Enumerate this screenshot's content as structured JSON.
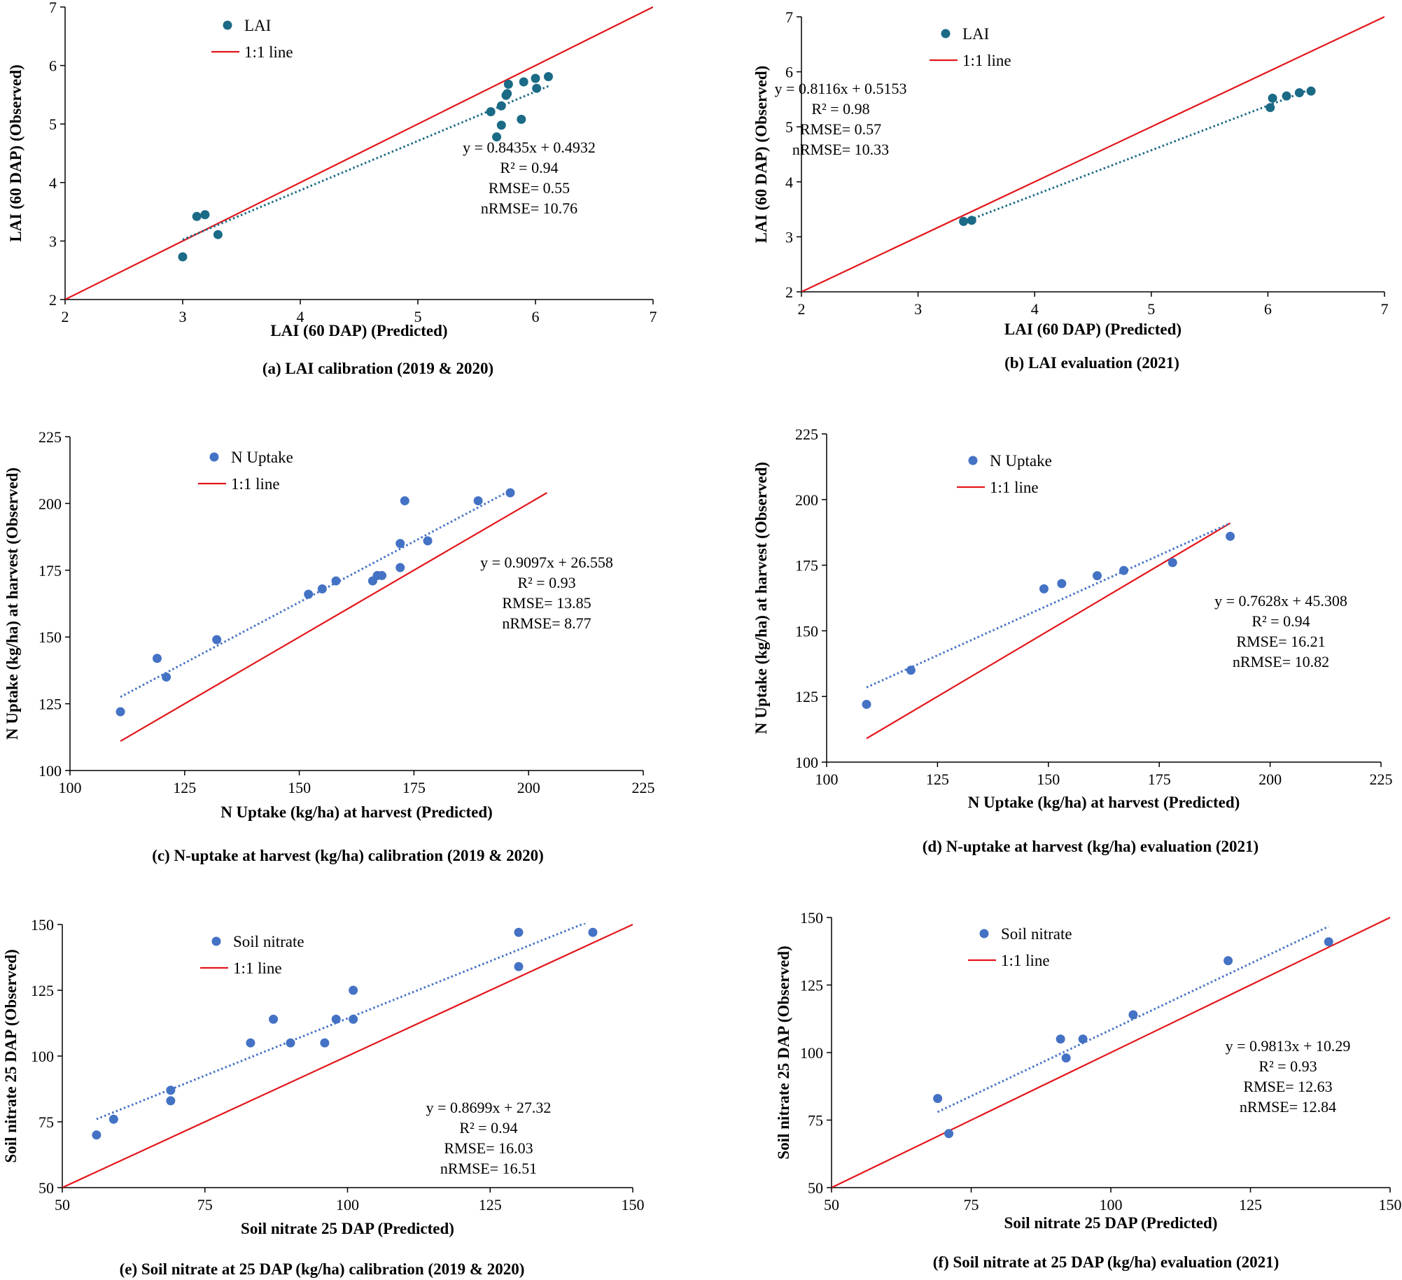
{
  "colors": {
    "lai_point": "#1b6a86",
    "blue_point": "#4472c4",
    "one_to_one": "#e3161b",
    "axis": "#000000"
  },
  "chart_data": [
    {
      "id": "a",
      "type": "scatter",
      "caption": "(a) LAI calibration (2019 & 2020)",
      "xlabel": "LAI (60 DAP) (Predicted)",
      "ylabel": "LAI  (60 DAP) (Observed)",
      "xlim": [
        2,
        7
      ],
      "ylim": [
        2,
        7
      ],
      "xticks": [
        2,
        3,
        4,
        5,
        6,
        7
      ],
      "yticks": [
        2,
        3,
        4,
        5,
        6,
        7
      ],
      "series_name": "LAI",
      "point_color_key": "lai_point",
      "one_to_one_label": "1:1 line",
      "one_to_one": [
        [
          2,
          2
        ],
        [
          7,
          7
        ]
      ],
      "trend": {
        "slope": 0.8435,
        "intercept": 0.4932,
        "x_range": [
          3.0,
          6.12
        ]
      },
      "annotation": [
        "y = 0.8435x + 0.4932",
        "R² = 0.94",
        "RMSE= 0.55",
        "nRMSE= 10.76"
      ],
      "points": [
        [
          3.0,
          2.73
        ],
        [
          3.12,
          3.42
        ],
        [
          3.19,
          3.45
        ],
        [
          3.3,
          3.11
        ],
        [
          5.62,
          5.21
        ],
        [
          5.67,
          4.78
        ],
        [
          5.71,
          4.98
        ],
        [
          5.71,
          5.31
        ],
        [
          5.75,
          5.49
        ],
        [
          5.76,
          5.52
        ],
        [
          5.77,
          5.68
        ],
        [
          5.88,
          5.08
        ],
        [
          5.9,
          5.72
        ],
        [
          6.0,
          5.78
        ],
        [
          6.01,
          5.61
        ],
        [
          6.11,
          5.81
        ]
      ]
    },
    {
      "id": "b",
      "type": "scatter",
      "caption": "(b) LAI evaluation (2021)",
      "xlabel": "LAI (60 DAP) (Predicted)",
      "ylabel": "LAI  (60 DAP) (Observed)",
      "xlim": [
        2,
        7
      ],
      "ylim": [
        2,
        7
      ],
      "xticks": [
        2,
        3,
        4,
        5,
        6,
        7
      ],
      "yticks": [
        2,
        3,
        4,
        5,
        6,
        7
      ],
      "series_name": "LAI",
      "point_color_key": "lai_point",
      "one_to_one_label": "1:1 line",
      "one_to_one": [
        [
          2,
          2
        ],
        [
          7,
          7
        ]
      ],
      "trend": {
        "slope": 0.8116,
        "intercept": 0.5153,
        "x_range": [
          3.38,
          6.37
        ]
      },
      "annotation": [
        "y = 0.8116x + 0.5153",
        "R² = 0.98",
        "RMSE= 0.57",
        "nRMSE= 10.33"
      ],
      "points": [
        [
          3.39,
          3.28
        ],
        [
          3.46,
          3.3
        ],
        [
          6.02,
          5.35
        ],
        [
          6.04,
          5.52
        ],
        [
          6.16,
          5.56
        ],
        [
          6.27,
          5.62
        ],
        [
          6.37,
          5.65
        ]
      ]
    },
    {
      "id": "c",
      "type": "scatter",
      "caption": "(c) N-uptake at harvest (kg/ha) calibration (2019 & 2020)",
      "xlabel": "N Uptake (kg/ha) at harvest (Predicted)",
      "ylabel": "N Uptake  (kg/ha) at harvest (Observed)",
      "xlim": [
        100,
        225
      ],
      "ylim": [
        100,
        225
      ],
      "xticks": [
        100,
        125,
        150,
        175,
        200,
        225
      ],
      "yticks": [
        100,
        125,
        150,
        175,
        200,
        225
      ],
      "series_name": "N Uptake",
      "point_color_key": "blue_point",
      "one_to_one_label": "1:1 line",
      "one_to_one": [
        [
          111,
          111
        ],
        [
          204,
          204
        ]
      ],
      "trend": {
        "slope": 0.9097,
        "intercept": 26.558,
        "x_range": [
          111,
          196
        ]
      },
      "annotation": [
        "y = 0.9097x + 26.558",
        "R² = 0.93",
        "RMSE= 13.85",
        "nRMSE= 8.77"
      ],
      "points": [
        [
          111,
          122
        ],
        [
          119,
          142
        ],
        [
          121,
          135
        ],
        [
          132,
          149
        ],
        [
          152,
          166
        ],
        [
          155,
          168
        ],
        [
          158,
          171
        ],
        [
          166,
          171
        ],
        [
          167,
          173
        ],
        [
          168,
          173
        ],
        [
          172,
          176
        ],
        [
          172,
          185
        ],
        [
          173,
          201
        ],
        [
          178,
          186
        ],
        [
          189,
          201
        ],
        [
          196,
          204
        ]
      ]
    },
    {
      "id": "d",
      "type": "scatter",
      "caption": "(d) N-uptake at harvest (kg/ha) evaluation (2021)",
      "xlabel": "N Uptake (kg/ha) at harvest (Predicted)",
      "ylabel": "N Uptake  (kg/ha) at harvest (Observed)",
      "xlim": [
        100,
        225
      ],
      "ylim": [
        100,
        225
      ],
      "xticks": [
        100,
        125,
        150,
        175,
        200,
        225
      ],
      "yticks": [
        100,
        125,
        150,
        175,
        200,
        225
      ],
      "series_name": "N Uptake",
      "point_color_key": "blue_point",
      "one_to_one_label": "1:1 line",
      "one_to_one": [
        [
          109,
          109
        ],
        [
          191,
          191
        ]
      ],
      "trend": {
        "slope": 0.7628,
        "intercept": 45.308,
        "x_range": [
          109,
          191
        ]
      },
      "annotation": [
        "y = 0.7628x + 45.308",
        "R² = 0.94",
        "RMSE= 16.21",
        "nRMSE= 10.82"
      ],
      "points": [
        [
          109,
          122
        ],
        [
          119,
          135
        ],
        [
          149,
          166
        ],
        [
          153,
          168
        ],
        [
          161,
          171
        ],
        [
          167,
          173
        ],
        [
          178,
          176
        ],
        [
          191,
          186
        ]
      ]
    },
    {
      "id": "e",
      "type": "scatter",
      "caption": "(e) Soil nitrate at 25 DAP (kg/ha) calibration (2019 & 2020)",
      "xlabel": "Soil nitrate 25 DAP (Predicted)",
      "ylabel": "Soil nitrate 25 DAP (Observed)",
      "xlim": [
        50,
        150
      ],
      "ylim": [
        50,
        150
      ],
      "xticks": [
        50,
        75,
        100,
        125,
        150
      ],
      "yticks": [
        50,
        75,
        100,
        125,
        150
      ],
      "series_name": "Soil nitrate",
      "point_color_key": "blue_point",
      "one_to_one_label": "1:1 line",
      "one_to_one": [
        [
          50,
          50
        ],
        [
          150,
          150
        ]
      ],
      "trend": {
        "slope": 0.8699,
        "intercept": 27.32,
        "x_range": [
          56,
          142
        ]
      },
      "annotation": [
        "y = 0.8699x + 27.32",
        "R² = 0.94",
        "RMSE= 16.03",
        "nRMSE= 16.51"
      ],
      "points": [
        [
          56,
          70
        ],
        [
          59,
          76
        ],
        [
          69,
          83
        ],
        [
          69,
          87
        ],
        [
          83,
          105
        ],
        [
          87,
          114
        ],
        [
          90,
          105
        ],
        [
          96,
          105
        ],
        [
          98,
          114
        ],
        [
          101,
          114
        ],
        [
          101,
          125
        ],
        [
          130,
          134
        ],
        [
          130,
          147
        ],
        [
          143,
          147
        ]
      ]
    },
    {
      "id": "f",
      "type": "scatter",
      "caption": "(f) Soil nitrate at 25 DAP (kg/ha) evaluation (2021)",
      "xlabel": "Soil nitrate 25 DAP (Predicted)",
      "ylabel": "Soil nitrate 25 DAP (Observed)",
      "xlim": [
        50,
        150
      ],
      "ylim": [
        50,
        150
      ],
      "xticks": [
        50,
        75,
        100,
        125,
        150
      ],
      "yticks": [
        50,
        75,
        100,
        125,
        150
      ],
      "series_name": "Soil nitrate",
      "point_color_key": "blue_point",
      "one_to_one_label": "1:1 line",
      "one_to_one": [
        [
          50,
          50
        ],
        [
          150,
          150
        ]
      ],
      "trend": {
        "slope": 0.9813,
        "intercept": 10.29,
        "x_range": [
          69,
          139
        ]
      },
      "annotation": [
        "y = 0.9813x + 10.29",
        "R² = 0.93",
        "RMSE= 12.63",
        "nRMSE= 12.84"
      ],
      "points": [
        [
          69,
          83
        ],
        [
          71,
          70
        ],
        [
          91,
          105
        ],
        [
          92,
          98
        ],
        [
          95,
          105
        ],
        [
          104,
          114
        ],
        [
          121,
          134
        ],
        [
          139,
          141
        ]
      ]
    }
  ]
}
